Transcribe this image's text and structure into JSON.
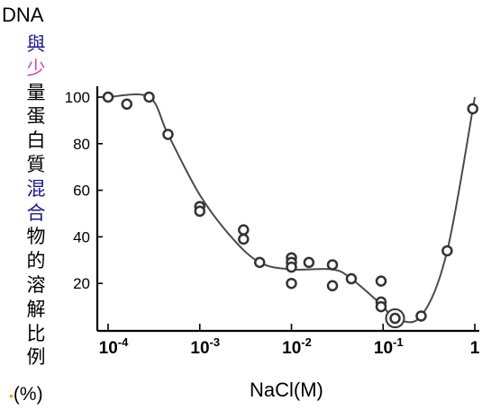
{
  "chart_data": {
    "type": "scatter",
    "ylabel_top": "DNA",
    "ylabel_chars": [
      "與",
      "少",
      "量",
      "蛋",
      "白",
      "質",
      "混",
      "合",
      "物",
      "的",
      "溶",
      "解",
      "比",
      "例"
    ],
    "ylabel_char_colors": [
      "#1a1a8a",
      "#d040b0",
      "#000000",
      "#000000",
      "#000000",
      "#000000",
      "#1a1a8a",
      "#1a1a8a",
      "#000000",
      "#000000",
      "#000000",
      "#000000",
      "#000000",
      "#000000"
    ],
    "ylabel_unit": "(%)",
    "xlabel": "NaCl(M)",
    "xscale": "log",
    "xlim": [
      0.0001,
      1
    ],
    "ylim": [
      0,
      100
    ],
    "x_ticks": [
      {
        "value": 0.0001,
        "base": "10",
        "exp": "-4"
      },
      {
        "value": 0.001,
        "base": "10",
        "exp": "-3"
      },
      {
        "value": 0.01,
        "base": "10",
        "exp": "-2"
      },
      {
        "value": 0.1,
        "base": "10",
        "exp": "-1"
      },
      {
        "value": 1,
        "base": "1",
        "exp": ""
      }
    ],
    "y_ticks": [
      20,
      40,
      60,
      80,
      100
    ],
    "points": [
      {
        "x": 0.0001,
        "y": 100
      },
      {
        "x": 0.00016,
        "y": 97
      },
      {
        "x": 0.00028,
        "y": 100
      },
      {
        "x": 0.00045,
        "y": 84
      },
      {
        "x": 0.001,
        "y": 53
      },
      {
        "x": 0.001,
        "y": 51
      },
      {
        "x": 0.003,
        "y": 43
      },
      {
        "x": 0.003,
        "y": 39
      },
      {
        "x": 0.0045,
        "y": 29
      },
      {
        "x": 0.01,
        "y": 31
      },
      {
        "x": 0.01,
        "y": 29
      },
      {
        "x": 0.01,
        "y": 27
      },
      {
        "x": 0.01,
        "y": 20
      },
      {
        "x": 0.0155,
        "y": 29
      },
      {
        "x": 0.028,
        "y": 28
      },
      {
        "x": 0.028,
        "y": 19
      },
      {
        "x": 0.045,
        "y": 22
      },
      {
        "x": 0.095,
        "y": 21
      },
      {
        "x": 0.095,
        "y": 12
      },
      {
        "x": 0.095,
        "y": 10
      },
      {
        "x": 0.135,
        "y": 5,
        "highlight": true
      },
      {
        "x": 0.26,
        "y": 6
      },
      {
        "x": 0.5,
        "y": 34
      },
      {
        "x": 0.95,
        "y": 95
      }
    ],
    "curve": [
      {
        "x": 0.0001,
        "y": 100
      },
      {
        "x": 0.00028,
        "y": 100
      },
      {
        "x": 0.00045,
        "y": 84
      },
      {
        "x": 0.001,
        "y": 58
      },
      {
        "x": 0.0022,
        "y": 40
      },
      {
        "x": 0.0045,
        "y": 29
      },
      {
        "x": 0.01,
        "y": 26
      },
      {
        "x": 0.028,
        "y": 26
      },
      {
        "x": 0.045,
        "y": 22
      },
      {
        "x": 0.095,
        "y": 11
      },
      {
        "x": 0.135,
        "y": 5
      },
      {
        "x": 0.26,
        "y": 6
      },
      {
        "x": 0.5,
        "y": 34
      },
      {
        "x": 1,
        "y": 100
      }
    ],
    "grid": false,
    "legend": "none"
  }
}
